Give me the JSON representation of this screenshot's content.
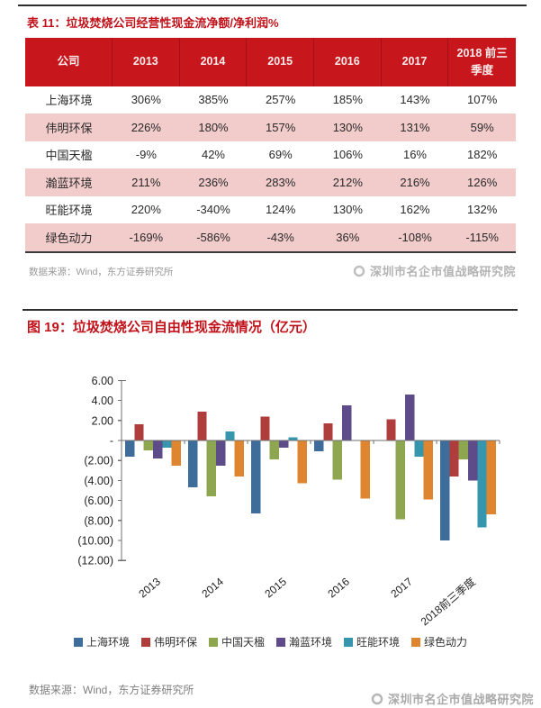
{
  "report": {
    "watermark_text": "深圳市名企市值战略研究院"
  },
  "table_section": {
    "title": "表 11：垃圾焚烧公司经营性现金流净额/净利润%",
    "columns": [
      "公司",
      "2013",
      "2014",
      "2015",
      "2016",
      "2017",
      "2018 前三季度"
    ],
    "rows": [
      {
        "company": "上海环境",
        "values": [
          "306%",
          "385%",
          "257%",
          "185%",
          "143%",
          "107%"
        ]
      },
      {
        "company": "伟明环保",
        "values": [
          "226%",
          "180%",
          "157%",
          "130%",
          "131%",
          "59%"
        ]
      },
      {
        "company": "中国天楹",
        "values": [
          "-9%",
          "42%",
          "69%",
          "106%",
          "16%",
          "182%"
        ]
      },
      {
        "company": "瀚蓝环境",
        "values": [
          "211%",
          "236%",
          "283%",
          "212%",
          "216%",
          "126%"
        ]
      },
      {
        "company": "旺能环境",
        "values": [
          "220%",
          "-340%",
          "124%",
          "130%",
          "162%",
          "132%"
        ]
      },
      {
        "company": "绿色动力",
        "values": [
          "-169%",
          "-586%",
          "-43%",
          "36%",
          "-108%",
          "-115%"
        ]
      }
    ],
    "source": "数据来源：Wind，东方证券研究所"
  },
  "chart_section": {
    "title": "图 19：垃圾焚烧公司自由性现金流情况（亿元）",
    "source": "数据来源：Wind，东方证券研究所"
  },
  "chart_data": {
    "type": "bar",
    "title": "图 19：垃圾焚烧公司自由性现金流情况（亿元）",
    "unit": "亿元",
    "categories": [
      "2013",
      "2014",
      "2015",
      "2016",
      "2017",
      "2018前三季度"
    ],
    "series": [
      {
        "name": "上海环境",
        "color": "#3e6d9c",
        "values": [
          -1.6,
          -4.7,
          -7.3,
          -1.1,
          0.0,
          -10.0
        ]
      },
      {
        "name": "伟明环保",
        "color": "#af3d3b",
        "values": [
          1.6,
          2.9,
          2.4,
          1.7,
          2.1,
          -3.6
        ]
      },
      {
        "name": "中国天楹",
        "color": "#8ea650",
        "values": [
          -1.0,
          -5.6,
          -1.9,
          -3.9,
          -7.9,
          -1.9
        ]
      },
      {
        "name": "瀚蓝环境",
        "color": "#5d4b8a",
        "values": [
          -1.8,
          -2.5,
          -0.7,
          3.5,
          4.6,
          -4.0
        ]
      },
      {
        "name": "旺能环境",
        "color": "#3596ae",
        "values": [
          -0.7,
          0.9,
          0.3,
          0.0,
          -1.6,
          -8.7
        ]
      },
      {
        "name": "绿色动力",
        "color": "#e0852f",
        "values": [
          -2.5,
          -3.6,
          -4.3,
          -5.8,
          -5.9,
          -7.4
        ]
      }
    ],
    "ylim": [
      -12,
      6
    ],
    "y_ticks": [
      6,
      4,
      2,
      0,
      -2,
      -4,
      -6,
      -8,
      -10,
      -12
    ],
    "y_tick_labels": [
      "6.00",
      "4.00",
      "2.00",
      "-",
      "(2.00)",
      "(4.00)",
      "(6.00)",
      "(8.00)",
      "(10.00)",
      "(12.00)"
    ],
    "legend_position": "bottom",
    "grid": false
  },
  "colors": {
    "header_red": "#c8161d",
    "row_pink": "#f2cbcb",
    "title_red": "#c1121a",
    "axis_gray": "#6f6f6f"
  }
}
